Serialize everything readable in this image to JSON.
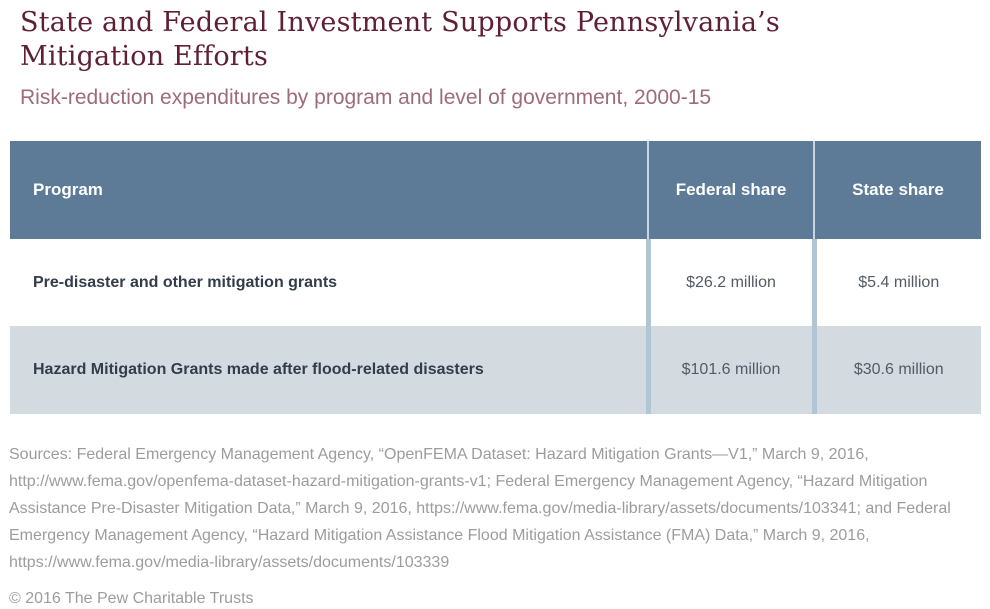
{
  "header": {
    "title_lines": [
      "State and Federal Investment Supports Pennsylvania’s",
      "Mitigation Efforts"
    ],
    "title": "State and Federal Investment Supports Pennsylvania’s Mitigation Efforts",
    "subtitle": "Risk-reduction expenditures by program and level of government, 2000-15"
  },
  "chart_data": {
    "type": "table",
    "title": "State and Federal Investment Supports Pennsylvania’s Mitigation Efforts",
    "subtitle": "Risk-reduction expenditures by program and level of government, 2000-15",
    "columns": [
      "Program",
      "Federal share",
      "State share"
    ],
    "rows": [
      [
        "Pre-disaster and other mitigation grants",
        "$26.2 million",
        "$5.4 million"
      ],
      [
        "Hazard Mitigation Grants made after flood-related disasters",
        "$101.6 million",
        "$30.6 million"
      ]
    ],
    "numeric": {
      "unit": "USD millions",
      "categories": [
        "Pre-disaster and other mitigation grants",
        "Hazard Mitigation Grants made after flood-related disasters"
      ],
      "series": [
        {
          "name": "Federal share",
          "values": [
            26.2,
            101.6
          ]
        },
        {
          "name": "State share",
          "values": [
            5.4,
            30.6
          ]
        }
      ]
    }
  },
  "footer": {
    "sources": "Sources: Federal Emergency Management Agency, “OpenFEMA Dataset: Hazard Mitigation Grants—V1,” March 9, 2016, http://www.fema.gov/openfema-dataset-hazard-mitigation-grants-v1; Federal Emergency Management Agency, “Hazard Mitigation Assistance Pre-Disaster Mitigation Data,” March 9, 2016, https://www.fema.gov/media-library/assets/documents/103341; and Federal Emergency Management Agency, “Hazard Mitigation Assistance Flood Mitigation Assistance (FMA) Data,” March 9, 2016, https://www.fema.gov/media-library/assets/documents/103339",
    "copyright": "© 2016 The Pew Charitable Trusts"
  },
  "colors": {
    "title_text": "#5f2033",
    "subtitle_text": "#9e6c77",
    "header_bg": "#5d7b97",
    "header_text": "#ffffff",
    "row_alt_bg": "#d3dae0",
    "column_divider": "#b2c5d2",
    "program_text": "#333d4a",
    "value_text": "#545b66",
    "source_text": "#9c9c9c"
  }
}
